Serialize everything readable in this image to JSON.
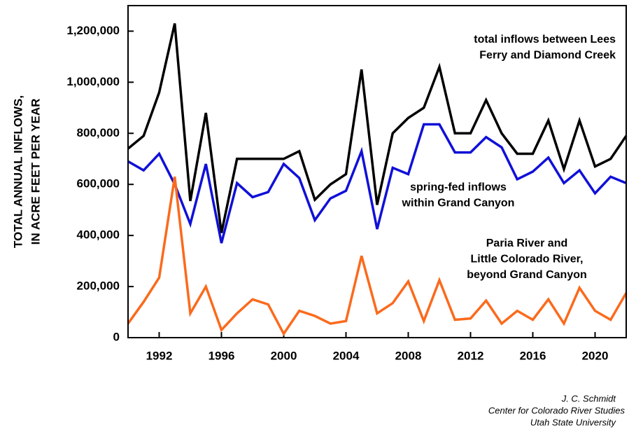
{
  "chart_data": {
    "type": "line",
    "ylabel": [
      "TOTAL ANNUAL INFLOWS,",
      "IN ACRE FEET PER YEAR"
    ],
    "x": [
      1990,
      1991,
      1992,
      1993,
      1994,
      1995,
      1996,
      1997,
      1998,
      1999,
      2000,
      2001,
      2002,
      2003,
      2004,
      2005,
      2006,
      2007,
      2008,
      2009,
      2010,
      2011,
      2012,
      2013,
      2014,
      2015,
      2016,
      2017,
      2018,
      2019,
      2020,
      2021,
      2022
    ],
    "series": [
      {
        "name": "total inflows between Lees\nFerry and Diamond Creek",
        "color": "#000000",
        "values": [
          740000,
          790000,
          960000,
          1230000,
          535000,
          880000,
          410000,
          700000,
          700000,
          700000,
          700000,
          730000,
          540000,
          600000,
          640000,
          1050000,
          520000,
          800000,
          860000,
          900000,
          1060000,
          800000,
          800000,
          930000,
          800000,
          720000,
          720000,
          850000,
          660000,
          850000,
          670000,
          700000,
          790000
        ]
      },
      {
        "name": "spring-fed inflows\nwithin Grand Canyon",
        "color": "#1010d8",
        "values": [
          690000,
          655000,
          720000,
          600000,
          445000,
          680000,
          370000,
          605000,
          550000,
          570000,
          680000,
          625000,
          460000,
          545000,
          575000,
          730000,
          425000,
          665000,
          640000,
          835000,
          835000,
          725000,
          725000,
          785000,
          745000,
          620000,
          650000,
          705000,
          605000,
          655000,
          565000,
          630000,
          605000
        ]
      },
      {
        "name": "Paria River and\nLittle Colorado River,\nbeyond Grand Canyon",
        "color": "#fb6a1c",
        "values": [
          55000,
          140000,
          235000,
          630000,
          95000,
          200000,
          30000,
          95000,
          150000,
          130000,
          15000,
          105000,
          85000,
          55000,
          65000,
          320000,
          95000,
          135000,
          220000,
          65000,
          225000,
          70000,
          75000,
          145000,
          55000,
          105000,
          70000,
          150000,
          55000,
          195000,
          105000,
          70000,
          175000
        ]
      }
    ],
    "xlim": [
      1990,
      2022
    ],
    "xticks": [
      1992,
      1996,
      2000,
      2004,
      2008,
      2012,
      2016,
      2020
    ],
    "ylim": [
      0,
      1300000
    ],
    "yticks": [
      0,
      {
        "value": 200000,
        "label": "200,000"
      },
      {
        "value": 400000,
        "label": "400,000"
      },
      {
        "value": 600000,
        "label": "600,000"
      },
      {
        "value": 800000,
        "label": "800,000"
      },
      {
        "value": 1000000,
        "label": "1,000,000"
      },
      {
        "value": 1200000,
        "label": "1,200,000"
      }
    ],
    "credit": [
      "J. C. Schmidt",
      "Center for Colorado River Studies",
      "Utah State University"
    ]
  }
}
